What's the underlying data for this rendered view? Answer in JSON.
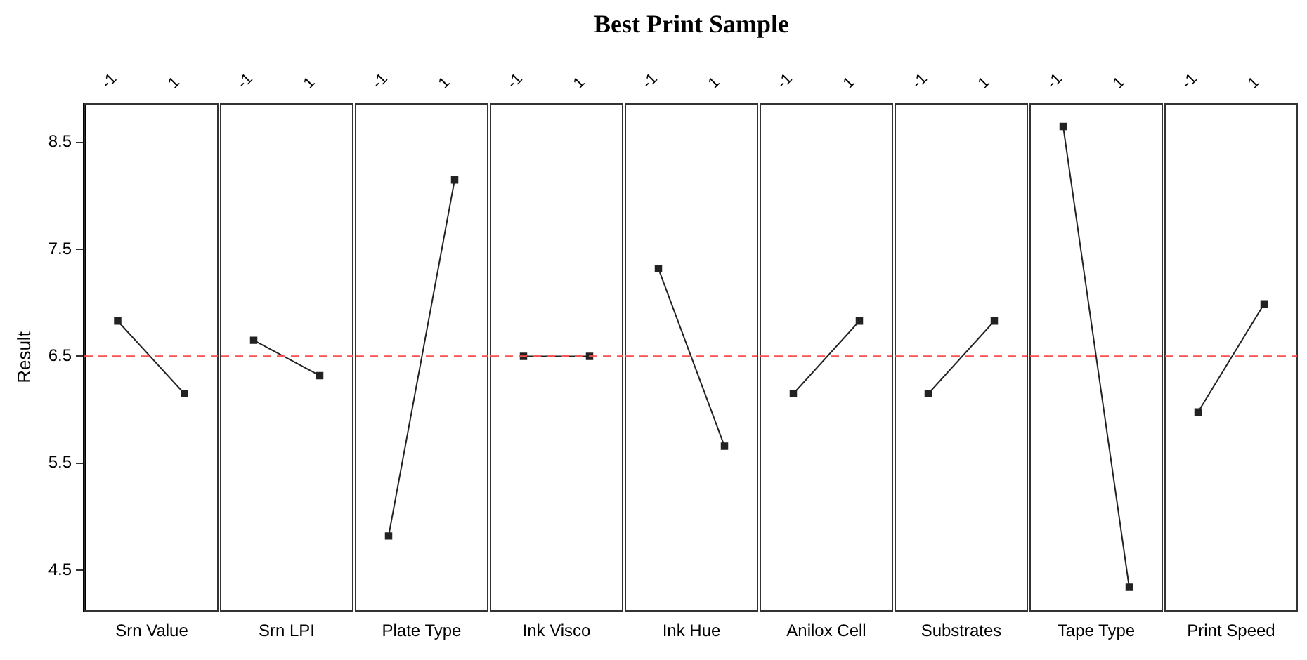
{
  "chart_data": [
    {
      "type": "line",
      "ylabel": "Result",
      "xlabel": "Srn Value",
      "categories": [
        "-1",
        "1"
      ],
      "series": [
        {
          "color": "#222222",
          "values": [
            6.83,
            6.15
          ]
        }
      ],
      "ylim": [
        4.12,
        8.86
      ],
      "yticks": [
        4.5,
        5.5,
        6.5,
        7.5,
        8.5
      ],
      "marker": "square",
      "ref_lines": [
        {
          "axis": "y",
          "value": 6.5,
          "color": "#ff5050",
          "line_style": "dashed"
        }
      ]
    },
    {
      "type": "line",
      "xlabel": "Srn LPI",
      "categories": [
        "-1",
        "1"
      ],
      "series": [
        {
          "color": "#222222",
          "values": [
            6.65,
            6.32
          ]
        }
      ],
      "ylim": [
        4.12,
        8.86
      ],
      "tick_labels": "x",
      "marker": "square",
      "ref_lines": [
        {
          "axis": "y",
          "value": 6.5,
          "color": "#ff5050",
          "line_style": "dashed"
        }
      ]
    },
    {
      "type": "line",
      "xlabel": "Plate Type",
      "categories": [
        "-1",
        "1"
      ],
      "series": [
        {
          "color": "#222222",
          "values": [
            4.82,
            8.15
          ]
        }
      ],
      "ylim": [
        4.12,
        8.86
      ],
      "tick_labels": "x",
      "marker": "square",
      "ref_lines": [
        {
          "axis": "y",
          "value": 6.5,
          "color": "#ff5050",
          "line_style": "dashed"
        }
      ]
    },
    {
      "type": "line",
      "xlabel": "Ink Visco",
      "categories": [
        "-1",
        "1"
      ],
      "series": [
        {
          "color": "#222222",
          "values": [
            6.5,
            6.5
          ]
        }
      ],
      "ylim": [
        4.12,
        8.86
      ],
      "tick_labels": "x",
      "marker": "square",
      "ref_lines": [
        {
          "axis": "y",
          "value": 6.5,
          "color": "#ff5050",
          "line_style": "dashed"
        }
      ]
    },
    {
      "type": "line",
      "title": "Best Print Sample",
      "xlabel": "Ink Hue",
      "categories": [
        "-1",
        "1"
      ],
      "series": [
        {
          "color": "#222222",
          "values": [
            7.32,
            5.66
          ]
        }
      ],
      "ylim": [
        4.12,
        8.86
      ],
      "tick_labels": "x",
      "marker": "square",
      "ref_lines": [
        {
          "axis": "y",
          "value": 6.5,
          "color": "#ff5050",
          "line_style": "dashed"
        }
      ]
    },
    {
      "type": "line",
      "xlabel": "Anilox Cell",
      "categories": [
        "-1",
        "1"
      ],
      "series": [
        {
          "color": "#222222",
          "values": [
            6.15,
            6.83
          ]
        }
      ],
      "ylim": [
        4.12,
        8.86
      ],
      "tick_labels": "x",
      "marker": "square",
      "ref_lines": [
        {
          "axis": "y",
          "value": 6.5,
          "color": "#ff5050",
          "line_style": "dashed"
        }
      ]
    },
    {
      "type": "line",
      "xlabel": "Substrates",
      "categories": [
        "-1",
        "1"
      ],
      "series": [
        {
          "color": "#222222",
          "values": [
            6.15,
            6.83
          ]
        }
      ],
      "ylim": [
        4.12,
        8.86
      ],
      "tick_labels": "x",
      "marker": "square",
      "ref_lines": [
        {
          "axis": "y",
          "value": 6.5,
          "color": "#ff5050",
          "line_style": "dashed"
        }
      ]
    },
    {
      "type": "line",
      "xlabel": "Tape Type",
      "categories": [
        "-1",
        "1"
      ],
      "series": [
        {
          "color": "#222222",
          "values": [
            8.65,
            4.34
          ]
        }
      ],
      "ylim": [
        4.12,
        8.86
      ],
      "tick_labels": "x",
      "marker": "square",
      "ref_lines": [
        {
          "axis": "y",
          "value": 6.5,
          "color": "#ff5050",
          "line_style": "dashed"
        }
      ]
    },
    {
      "type": "line",
      "xlabel": "Print Speed",
      "categories": [
        "-1",
        "1"
      ],
      "series": [
        {
          "color": "#222222",
          "values": [
            5.98,
            6.99
          ]
        }
      ],
      "ylim": [
        4.12,
        8.86
      ],
      "tick_labels": "x",
      "marker": "square",
      "ref_lines": [
        {
          "axis": "y",
          "value": 6.5,
          "color": "#ff5050",
          "line_style": "dashed"
        }
      ]
    }
  ]
}
